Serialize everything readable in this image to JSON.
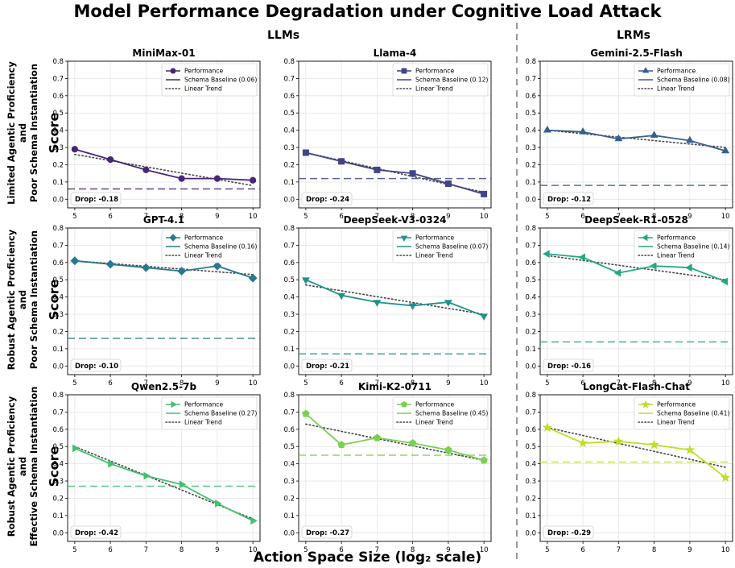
{
  "figure": {
    "title": "Model Performance Degradation under Cognitive Load Attack",
    "groups": [
      "LLMs",
      "LRMs"
    ],
    "xlabel": "Action Space Size (log₂ scale)",
    "ylabel": "Score",
    "row_labels": [
      [
        "Limited Agentic Proficiency",
        "and",
        "Poor Schema Instantiation"
      ],
      [
        "Robust Agentic Proficiency",
        "and",
        "Poor Schema Instantiation"
      ],
      [
        "Robust Agentic Proficiency",
        "and",
        "Effective Schema Instantiation"
      ]
    ],
    "legend_labels": {
      "performance": "Performance",
      "trend": "Linear Trend"
    }
  },
  "chart_data": [
    {
      "type": "line",
      "title": "MiniMax-01",
      "x": [
        5,
        6,
        7,
        8,
        9,
        10
      ],
      "series": [
        {
          "name": "Performance",
          "values": [
            0.29,
            0.23,
            0.17,
            0.12,
            0.12,
            0.11
          ]
        }
      ],
      "baseline": 0.06,
      "baseline_label": "Schema Baseline (0.06)",
      "drop_label": "Drop: -0.18",
      "trend": [
        0.26,
        0.079
      ],
      "marker": "circle",
      "color": "#482677",
      "xlim": [
        5,
        10
      ],
      "ylim": [
        0,
        0.8
      ],
      "xticks": [
        5,
        6,
        7,
        8,
        9,
        10
      ],
      "yticks": [
        0.0,
        0.1,
        0.2,
        0.3,
        0.4,
        0.5,
        0.6,
        0.7,
        0.8
      ],
      "grid": true,
      "legend": "top-right"
    },
    {
      "type": "line",
      "title": "Llama-4",
      "x": [
        5,
        6,
        7,
        8,
        9,
        10
      ],
      "series": [
        {
          "name": "Performance",
          "values": [
            0.27,
            0.22,
            0.17,
            0.15,
            0.09,
            0.03
          ]
        }
      ],
      "baseline": 0.12,
      "baseline_label": "Schema Baseline (0.12)",
      "drop_label": "Drop: -0.24",
      "trend": [
        0.27,
        0.04
      ],
      "marker": "square",
      "color": "#414487",
      "xlim": [
        5,
        10
      ],
      "ylim": [
        0,
        0.8
      ],
      "xticks": [
        5,
        6,
        7,
        8,
        9,
        10
      ],
      "yticks": [
        0.0,
        0.1,
        0.2,
        0.3,
        0.4,
        0.5,
        0.6,
        0.7,
        0.8
      ],
      "grid": true,
      "legend": "top-right"
    },
    {
      "type": "line",
      "title": "Gemini-2.5-Flash",
      "x": [
        5,
        6,
        7,
        8,
        9,
        10
      ],
      "series": [
        {
          "name": "Performance",
          "values": [
            0.4,
            0.39,
            0.35,
            0.37,
            0.34,
            0.28
          ]
        }
      ],
      "baseline": 0.08,
      "baseline_label": "Schema Baseline (0.08)",
      "drop_label": "Drop: -0.12",
      "trend": [
        0.4,
        0.3
      ],
      "marker": "triangle-up",
      "color": "#355f8d",
      "xlim": [
        5,
        10
      ],
      "ylim": [
        0,
        0.8
      ],
      "xticks": [
        5,
        6,
        7,
        8,
        9,
        10
      ],
      "yticks": [
        0.0,
        0.1,
        0.2,
        0.3,
        0.4,
        0.5,
        0.6,
        0.7,
        0.8
      ],
      "grid": true,
      "legend": "top-right"
    },
    {
      "type": "line",
      "title": "GPT-4.1",
      "x": [
        5,
        6,
        7,
        8,
        9,
        10
      ],
      "series": [
        {
          "name": "Performance",
          "values": [
            0.61,
            0.59,
            0.57,
            0.55,
            0.58,
            0.51
          ]
        }
      ],
      "baseline": 0.16,
      "baseline_label": "Schema Baseline (0.16)",
      "drop_label": "Drop: -0.10",
      "trend": [
        0.61,
        0.53
      ],
      "marker": "diamond",
      "color": "#2a788e",
      "xlim": [
        5,
        10
      ],
      "ylim": [
        0,
        0.8
      ],
      "xticks": [
        5,
        6,
        7,
        8,
        9,
        10
      ],
      "yticks": [
        0.0,
        0.1,
        0.2,
        0.3,
        0.4,
        0.5,
        0.6,
        0.7,
        0.8
      ],
      "grid": true,
      "legend": "top-right"
    },
    {
      "type": "line",
      "title": "DeepSeek-V3-0324",
      "x": [
        5,
        6,
        7,
        8,
        9,
        10
      ],
      "series": [
        {
          "name": "Performance",
          "values": [
            0.5,
            0.41,
            0.37,
            0.35,
            0.37,
            0.29
          ]
        }
      ],
      "baseline": 0.07,
      "baseline_label": "Schema Baseline (0.07)",
      "drop_label": "Drop: -0.21",
      "trend": [
        0.47,
        0.3
      ],
      "marker": "triangle-down",
      "color": "#21918c",
      "xlim": [
        5,
        10
      ],
      "ylim": [
        0,
        0.8
      ],
      "xticks": [
        5,
        6,
        7,
        8,
        9,
        10
      ],
      "yticks": [
        0.0,
        0.1,
        0.2,
        0.3,
        0.4,
        0.5,
        0.6,
        0.7,
        0.8
      ],
      "grid": true,
      "legend": "top-right"
    },
    {
      "type": "line",
      "title": "DeepSeek-R1-0528",
      "x": [
        5,
        6,
        7,
        8,
        9,
        10
      ],
      "series": [
        {
          "name": "Performance",
          "values": [
            0.65,
            0.63,
            0.54,
            0.58,
            0.57,
            0.49
          ]
        }
      ],
      "baseline": 0.14,
      "baseline_label": "Schema Baseline (0.14)",
      "drop_label": "Drop: -0.16",
      "trend": [
        0.64,
        0.5
      ],
      "marker": "triangle-left",
      "color": "#22a884",
      "xlim": [
        5,
        10
      ],
      "ylim": [
        0,
        0.8
      ],
      "xticks": [
        5,
        6,
        7,
        8,
        9,
        10
      ],
      "yticks": [
        0.0,
        0.1,
        0.2,
        0.3,
        0.4,
        0.5,
        0.6,
        0.7,
        0.8
      ],
      "grid": true,
      "legend": "top-right"
    },
    {
      "type": "line",
      "title": "Qwen2.5-7b",
      "x": [
        5,
        6,
        7,
        8,
        9,
        10
      ],
      "series": [
        {
          "name": "Performance",
          "values": [
            0.49,
            0.4,
            0.33,
            0.28,
            0.17,
            0.07
          ]
        }
      ],
      "baseline": 0.27,
      "baseline_label": "Schema Baseline (0.27)",
      "drop_label": "Drop: -0.42",
      "trend": [
        0.5,
        0.08
      ],
      "marker": "triangle-right",
      "color": "#44bf70",
      "xlim": [
        5,
        10
      ],
      "ylim": [
        0,
        0.8
      ],
      "xticks": [
        5,
        6,
        7,
        8,
        9,
        10
      ],
      "yticks": [
        0.0,
        0.1,
        0.2,
        0.3,
        0.4,
        0.5,
        0.6,
        0.7,
        0.8
      ],
      "grid": true,
      "legend": "top-right"
    },
    {
      "type": "line",
      "title": "Kimi-K2-0711",
      "x": [
        5,
        6,
        7,
        8,
        9,
        10
      ],
      "series": [
        {
          "name": "Performance",
          "values": [
            0.69,
            0.51,
            0.55,
            0.52,
            0.48,
            0.42
          ]
        }
      ],
      "baseline": 0.45,
      "baseline_label": "Schema Baseline (0.45)",
      "drop_label": "Drop: -0.27",
      "trend": [
        0.63,
        0.42
      ],
      "marker": "pentagon",
      "color": "#7ad151",
      "xlim": [
        5,
        10
      ],
      "ylim": [
        0,
        0.8
      ],
      "xticks": [
        5,
        6,
        7,
        8,
        9,
        10
      ],
      "yticks": [
        0.0,
        0.1,
        0.2,
        0.3,
        0.4,
        0.5,
        0.6,
        0.7,
        0.8
      ],
      "grid": true,
      "legend": "top-right"
    },
    {
      "type": "line",
      "title": "LongCat-Flash-Chat",
      "x": [
        5,
        6,
        7,
        8,
        9,
        10
      ],
      "series": [
        {
          "name": "Performance",
          "values": [
            0.61,
            0.52,
            0.53,
            0.51,
            0.48,
            0.32
          ]
        }
      ],
      "baseline": 0.41,
      "baseline_label": "Schema Baseline (0.41)",
      "drop_label": "Drop: -0.29",
      "trend": [
        0.61,
        0.38
      ],
      "marker": "star",
      "color": "#bddf26",
      "xlim": [
        5,
        10
      ],
      "ylim": [
        0,
        0.8
      ],
      "xticks": [
        5,
        6,
        7,
        8,
        9,
        10
      ],
      "yticks": [
        0.0,
        0.1,
        0.2,
        0.3,
        0.4,
        0.5,
        0.6,
        0.7,
        0.8
      ],
      "grid": true,
      "legend": "top-right"
    }
  ]
}
